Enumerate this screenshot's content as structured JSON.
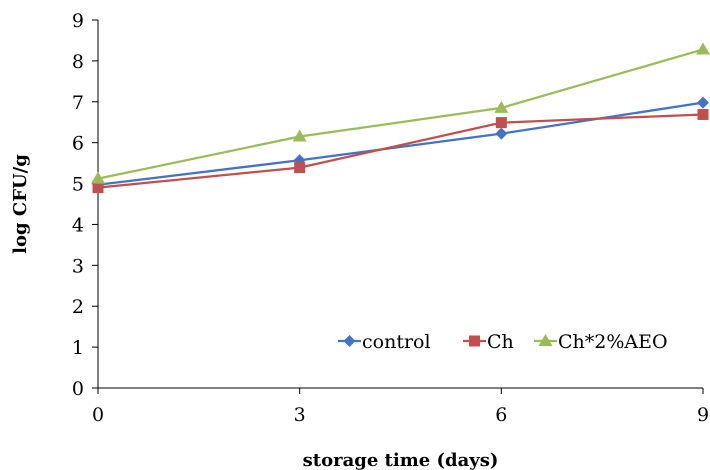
{
  "chart_data": {
    "type": "line",
    "title": "",
    "xlabel": "storage time (days)",
    "ylabel": "log CFU/g",
    "x": [
      0,
      3,
      6,
      9
    ],
    "xticks": [
      "0",
      "3",
      "6",
      "9"
    ],
    "yticks": [
      "0",
      "1",
      "2",
      "3",
      "4",
      "5",
      "6",
      "7",
      "8",
      "9"
    ],
    "xlim": [
      0,
      9
    ],
    "ylim": [
      0,
      9
    ],
    "grid": false,
    "legend_position": "bottom-right",
    "series": [
      {
        "name": "control",
        "values": [
          4.97,
          5.57,
          6.22,
          6.98
        ],
        "color": "#4472C4",
        "marker": "diamond"
      },
      {
        "name": "Ch",
        "values": [
          4.9,
          5.39,
          6.49,
          6.69
        ],
        "color": "#C0504D",
        "marker": "square"
      },
      {
        "name": "Ch*2%AEO",
        "values": [
          5.12,
          6.15,
          6.85,
          8.28
        ],
        "color": "#9BBB59",
        "marker": "triangle"
      }
    ]
  }
}
